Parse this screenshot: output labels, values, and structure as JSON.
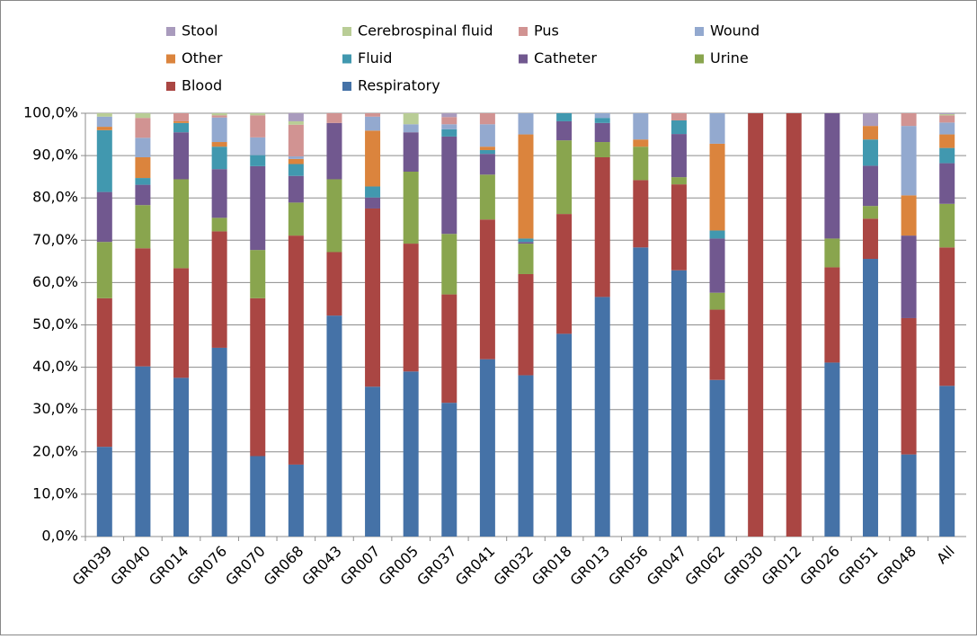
{
  "chart_data": {
    "type": "stacked_bar",
    "categories": [
      "GR039",
      "GR040",
      "GR014",
      "GR076",
      "GR070",
      "GR068",
      "GR043",
      "GR007",
      "GR005",
      "GR037",
      "GR041",
      "GR032",
      "GR018",
      "GR013",
      "GR056",
      "GR047",
      "GR062",
      "GR030",
      "GR012",
      "GR026",
      "GR051",
      "GR048",
      "All"
    ],
    "series": [
      {
        "name": "Stool",
        "color": "#a99bbd",
        "values": [
          0,
          0,
          0,
          0,
          0,
          1.9,
          0,
          0,
          0,
          0.9,
          0,
          0,
          0,
          0,
          0,
          0,
          0,
          0,
          0,
          0,
          3.0,
          0,
          0.2
        ]
      },
      {
        "name": "Cerebrospinal fluid",
        "color": "#b9cd96",
        "values": [
          0.8,
          1.1,
          0,
          0.5,
          0.5,
          0.8,
          0,
          0,
          2.6,
          0,
          0,
          0,
          0,
          0,
          0,
          0,
          0,
          0,
          0,
          0,
          0,
          0,
          0.3
        ]
      },
      {
        "name": "Pus",
        "color": "#d19392",
        "values": [
          0,
          4.7,
          1.9,
          0.5,
          5.2,
          7.5,
          2.3,
          0.8,
          0,
          1.7,
          2.6,
          0,
          0,
          0,
          0,
          1.7,
          0,
          0,
          0,
          0,
          0,
          3.0,
          1.7
        ]
      },
      {
        "name": "Wound",
        "color": "#93a9cf",
        "values": [
          2.4,
          4.6,
          0,
          5.8,
          4.2,
          0.6,
          0,
          3.3,
          1.9,
          1.2,
          5.3,
          5.0,
          0,
          1.1,
          6.2,
          0,
          7.2,
          0,
          0,
          0,
          0,
          16.4,
          2.8
        ]
      },
      {
        "name": "Other",
        "color": "#db843d",
        "values": [
          0.8,
          4.9,
          0.4,
          1.1,
          0,
          1.2,
          0,
          13.2,
          0,
          0,
          0.8,
          24.6,
          0,
          0,
          1.7,
          0,
          20.5,
          0,
          0,
          0,
          3.2,
          9.5,
          3.2
        ]
      },
      {
        "name": "Fluid",
        "color": "#4198af",
        "values": [
          14.6,
          1.6,
          2.2,
          5.3,
          2.6,
          2.8,
          0,
          2.6,
          0,
          1.7,
          0.9,
          0.8,
          1.9,
          1.2,
          0,
          3.2,
          1.9,
          0,
          0,
          0,
          6.2,
          0,
          3.6
        ]
      },
      {
        "name": "Catheter",
        "color": "#71588f",
        "values": [
          11.8,
          4.8,
          11.1,
          11.5,
          19.8,
          6.3,
          13.3,
          2.6,
          9.3,
          23.0,
          4.9,
          0.4,
          4.5,
          4.5,
          0,
          10.2,
          12.8,
          0,
          0,
          29.6,
          9.5,
          19.5,
          9.6
        ]
      },
      {
        "name": "Urine",
        "color": "#89a54e",
        "values": [
          13.3,
          10.2,
          21.0,
          3.2,
          11.4,
          7.8,
          17.2,
          0,
          17.0,
          14.3,
          10.6,
          7.2,
          17.4,
          3.6,
          7.9,
          1.7,
          4.0,
          0,
          0,
          6.8,
          3.0,
          0,
          10.3
        ]
      },
      {
        "name": "Blood",
        "color": "#aa4643",
        "values": [
          35.1,
          27.9,
          25.9,
          27.5,
          37.3,
          54.1,
          15.0,
          42.1,
          30.2,
          25.6,
          33.0,
          23.9,
          28.3,
          33.0,
          15.9,
          20.3,
          16.6,
          100,
          100,
          22.5,
          9.5,
          32.2,
          32.7
        ]
      },
      {
        "name": "Respiratory",
        "color": "#4572a7",
        "values": [
          21.2,
          40.2,
          37.5,
          44.6,
          19.0,
          17.0,
          52.2,
          35.4,
          39.0,
          31.6,
          41.9,
          38.1,
          47.9,
          56.6,
          68.3,
          62.9,
          37.0,
          0,
          0,
          41.1,
          65.6,
          19.4,
          35.6
        ]
      }
    ],
    "ylim": [
      0,
      100
    ],
    "yticks": [
      {
        "value": 0,
        "label": "0,0%"
      },
      {
        "value": 10,
        "label": "10,0%"
      },
      {
        "value": 20,
        "label": "20,0%"
      },
      {
        "value": 30,
        "label": "30,0%"
      },
      {
        "value": 40,
        "label": "40,0%"
      },
      {
        "value": 50,
        "label": "50,0%"
      },
      {
        "value": 60,
        "label": "60,0%"
      },
      {
        "value": 70,
        "label": "70,0%"
      },
      {
        "value": 80,
        "label": "80,0%"
      },
      {
        "value": 90,
        "label": "90,0%"
      },
      {
        "value": 100,
        "label": "100,0%"
      }
    ],
    "grid": true,
    "legend": "top"
  }
}
